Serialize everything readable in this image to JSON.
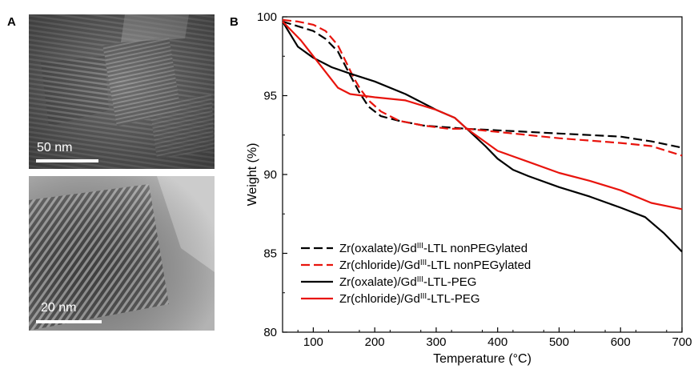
{
  "panels": {
    "a_letter": "A",
    "b_letter": "B",
    "tem_top_scale": "50 nm",
    "tem_bottom_scale": "20 nm"
  },
  "chart_data": {
    "type": "line",
    "xlabel": "Temperature (°C)",
    "ylabel": "Weight (%)",
    "xlim": [
      50,
      700
    ],
    "ylim": [
      80,
      100
    ],
    "xticks": [
      "100",
      "200",
      "300",
      "400",
      "500",
      "600",
      "700"
    ],
    "yticks": [
      "80",
      "85",
      "90",
      "95",
      "100"
    ],
    "legend_position": "bottom-left",
    "series": [
      {
        "name": "Zr(oxalate)/Gd^III-LTL nonPEGylated",
        "legend_parts": [
          "Zr(oxalate)/Gd",
          "III",
          "-LTL nonPEGylated"
        ],
        "color": "#000000",
        "dash": "dashed",
        "x": [
          50,
          75,
          100,
          120,
          140,
          160,
          175,
          190,
          210,
          240,
          280,
          350,
          400,
          500,
          600,
          650,
          700
        ],
        "y": [
          99.7,
          99.4,
          99.1,
          98.6,
          97.8,
          96.3,
          95.2,
          94.3,
          93.7,
          93.4,
          93.1,
          92.9,
          92.8,
          92.6,
          92.4,
          92.1,
          91.7
        ]
      },
      {
        "name": "Zr(chloride)/Gd^III-LTL nonPEGylated",
        "legend_parts": [
          "Zr(chloride)/Gd",
          "III",
          "-LTL nonPEGylated"
        ],
        "color": "#e8140d",
        "dash": "dashed",
        "x": [
          50,
          75,
          100,
          120,
          140,
          155,
          165,
          175,
          190,
          210,
          240,
          280,
          320,
          350,
          400,
          500,
          600,
          650,
          700
        ],
        "y": [
          99.8,
          99.7,
          99.5,
          99.1,
          98.2,
          97.0,
          96.2,
          95.5,
          94.7,
          94.0,
          93.4,
          93.1,
          92.9,
          92.9,
          92.7,
          92.3,
          92.0,
          91.8,
          91.2
        ]
      },
      {
        "name": "Zr(oxalate)/Gd^III-LTL-PEG",
        "legend_parts": [
          "Zr(oxalate)/Gd",
          "III",
          "-LTL-PEG"
        ],
        "color": "#000000",
        "dash": "solid",
        "x": [
          50,
          75,
          100,
          130,
          160,
          200,
          250,
          300,
          330,
          350,
          380,
          400,
          425,
          450,
          500,
          550,
          600,
          640,
          670,
          700
        ],
        "y": [
          99.7,
          98.1,
          97.4,
          96.8,
          96.4,
          95.9,
          95.1,
          94.1,
          93.6,
          92.9,
          91.8,
          91.0,
          90.3,
          89.9,
          89.2,
          88.6,
          87.9,
          87.3,
          86.3,
          85.1
        ]
      },
      {
        "name": "Zr(chloride)/Gd^III-LTL-PEG",
        "legend_parts": [
          "Zr(chloride)/Gd",
          "III",
          "-LTL-PEG"
        ],
        "color": "#e8140d",
        "dash": "solid",
        "x": [
          50,
          80,
          110,
          140,
          160,
          180,
          200,
          250,
          300,
          330,
          350,
          400,
          450,
          500,
          550,
          600,
          650,
          700
        ],
        "y": [
          99.7,
          98.5,
          97.0,
          95.5,
          95.1,
          95.0,
          94.9,
          94.7,
          94.1,
          93.6,
          92.9,
          91.5,
          90.8,
          90.1,
          89.6,
          89.0,
          88.2,
          87.8
        ]
      }
    ]
  }
}
